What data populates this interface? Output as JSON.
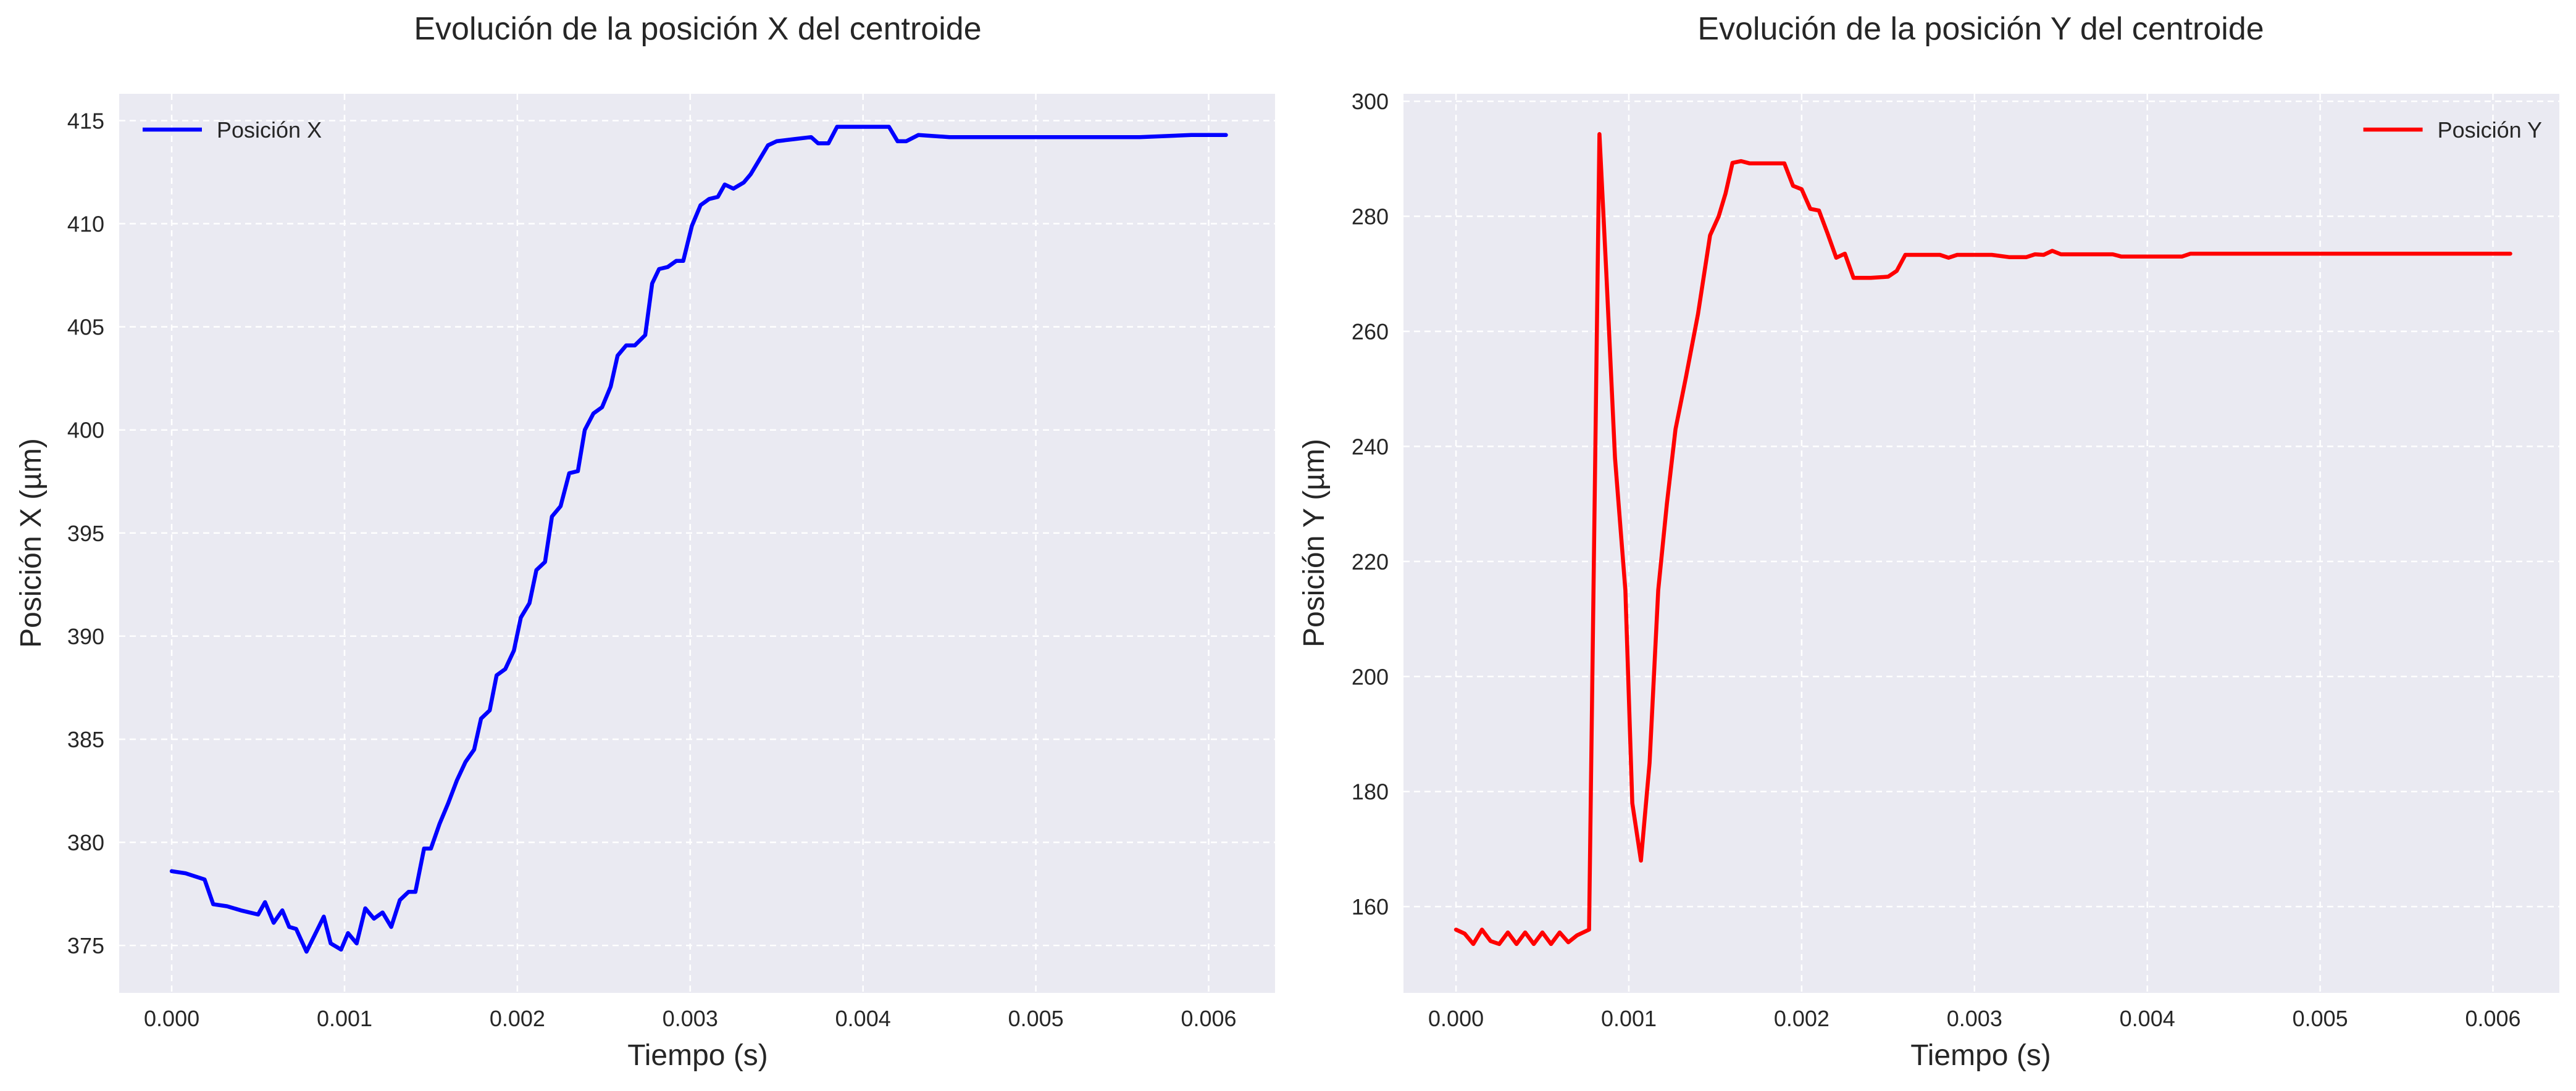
{
  "chart_data": [
    {
      "type": "line",
      "title": "Evolución de la posición X del centroide",
      "xlabel": "Tiempo (s)",
      "ylabel": "Posición X (µm)",
      "xlim": [
        -0.000304,
        0.006384
      ],
      "ylim": [
        372.7,
        416.3
      ],
      "xticks": [
        0.0,
        0.001,
        0.002,
        0.003,
        0.004,
        0.005,
        0.006
      ],
      "xtick_labels": [
        "0.000",
        "0.001",
        "0.002",
        "0.003",
        "0.004",
        "0.005",
        "0.006"
      ],
      "yticks": [
        375,
        380,
        385,
        390,
        395,
        400,
        405,
        410,
        415
      ],
      "ytick_labels": [
        "375",
        "380",
        "385",
        "390",
        "395",
        "400",
        "405",
        "410",
        "415"
      ],
      "grid": true,
      "legend_position": "top-left",
      "series": [
        {
          "name": "Posición X",
          "color": "#0000ff",
          "points": [
            [
              0.0,
              378.6
            ],
            [
              8e-05,
              378.5
            ],
            [
              0.00019,
              378.2
            ],
            [
              0.00024,
              377.0
            ],
            [
              0.00032,
              376.9
            ],
            [
              0.0004,
              376.7
            ],
            [
              0.0005,
              376.5
            ],
            [
              0.00054,
              377.1
            ],
            [
              0.00059,
              376.1
            ],
            [
              0.00064,
              376.7
            ],
            [
              0.00068,
              375.9
            ],
            [
              0.00072,
              375.8
            ],
            [
              0.00078,
              374.7
            ],
            [
              0.00088,
              376.4
            ],
            [
              0.00092,
              375.1
            ],
            [
              0.00098,
              374.8
            ],
            [
              0.00102,
              375.6
            ],
            [
              0.00107,
              375.1
            ],
            [
              0.00112,
              376.8
            ],
            [
              0.00117,
              376.3
            ],
            [
              0.00122,
              376.6
            ],
            [
              0.00127,
              375.9
            ],
            [
              0.00132,
              377.2
            ],
            [
              0.00137,
              377.6
            ],
            [
              0.00141,
              377.6
            ],
            [
              0.00146,
              379.7
            ],
            [
              0.0015,
              379.7
            ],
            [
              0.00155,
              380.9
            ],
            [
              0.0016,
              381.9
            ],
            [
              0.00165,
              383.0
            ],
            [
              0.0017,
              383.9
            ],
            [
              0.00175,
              384.5
            ],
            [
              0.00179,
              386.0
            ],
            [
              0.00184,
              386.4
            ],
            [
              0.00188,
              388.1
            ],
            [
              0.00193,
              388.4
            ],
            [
              0.00198,
              389.3
            ],
            [
              0.00202,
              390.9
            ],
            [
              0.00207,
              391.6
            ],
            [
              0.00211,
              393.2
            ],
            [
              0.00216,
              393.6
            ],
            [
              0.0022,
              395.8
            ],
            [
              0.00225,
              396.3
            ],
            [
              0.0023,
              397.9
            ],
            [
              0.00235,
              398.0
            ],
            [
              0.00239,
              400.0
            ],
            [
              0.00244,
              400.8
            ],
            [
              0.00249,
              401.1
            ],
            [
              0.00254,
              402.1
            ],
            [
              0.00258,
              403.6
            ],
            [
              0.00263,
              404.1
            ],
            [
              0.00268,
              404.1
            ],
            [
              0.00274,
              404.6
            ],
            [
              0.00278,
              407.1
            ],
            [
              0.00282,
              407.8
            ],
            [
              0.00287,
              407.9
            ],
            [
              0.00292,
              408.2
            ],
            [
              0.00296,
              408.2
            ],
            [
              0.00301,
              409.9
            ],
            [
              0.00306,
              410.9
            ],
            [
              0.00311,
              411.2
            ],
            [
              0.00316,
              411.3
            ],
            [
              0.0032,
              411.9
            ],
            [
              0.00325,
              411.7
            ],
            [
              0.00331,
              412.0
            ],
            [
              0.00335,
              412.4
            ],
            [
              0.0034,
              413.1
            ],
            [
              0.00345,
              413.8
            ],
            [
              0.0035,
              414.0
            ],
            [
              0.0036,
              414.1
            ],
            [
              0.0037,
              414.2
            ],
            [
              0.00374,
              413.9
            ],
            [
              0.0038,
              413.9
            ],
            [
              0.00385,
              414.7
            ],
            [
              0.0039,
              414.7
            ],
            [
              0.004,
              414.7
            ],
            [
              0.0041,
              414.7
            ],
            [
              0.00415,
              414.7
            ],
            [
              0.0042,
              414.0
            ],
            [
              0.00425,
              414.0
            ],
            [
              0.00432,
              414.3
            ],
            [
              0.0045,
              414.2
            ],
            [
              0.0048,
              414.2
            ],
            [
              0.0052,
              414.2
            ],
            [
              0.0056,
              414.2
            ],
            [
              0.0059,
              414.3
            ],
            [
              0.0061,
              414.3
            ]
          ]
        }
      ]
    },
    {
      "type": "line",
      "title": "Evolución de la posición Y del centroide",
      "xlabel": "Tiempo (s)",
      "ylabel": "Posición Y (µm)",
      "xlim": [
        -0.000304,
        0.006384
      ],
      "ylim": [
        145.0,
        301.3
      ],
      "xticks": [
        0.0,
        0.001,
        0.002,
        0.003,
        0.004,
        0.005,
        0.006
      ],
      "xtick_labels": [
        "0.000",
        "0.001",
        "0.002",
        "0.003",
        "0.004",
        "0.005",
        "0.006"
      ],
      "yticks": [
        160,
        180,
        200,
        220,
        240,
        260,
        280,
        300
      ],
      "ytick_labels": [
        "160",
        "180",
        "200",
        "220",
        "240",
        "260",
        "280",
        "300"
      ],
      "grid": true,
      "legend_position": "top-right",
      "series": [
        {
          "name": "Posición Y",
          "color": "#ff0000",
          "points": [
            [
              0.0,
              156.0
            ],
            [
              5e-05,
              155.3
            ],
            [
              0.0001,
              153.5
            ],
            [
              0.00015,
              156.0
            ],
            [
              0.0002,
              154.0
            ],
            [
              0.00025,
              153.5
            ],
            [
              0.0003,
              155.5
            ],
            [
              0.00035,
              153.5
            ],
            [
              0.0004,
              155.5
            ],
            [
              0.00045,
              153.5
            ],
            [
              0.0005,
              155.5
            ],
            [
              0.00055,
              153.5
            ],
            [
              0.0006,
              155.5
            ],
            [
              0.00065,
              153.8
            ],
            [
              0.0007,
              155.0
            ],
            [
              0.00077,
              156.0
            ],
            [
              0.00083,
              294.3
            ],
            [
              0.00087,
              270.0
            ],
            [
              0.00092,
              238.0
            ],
            [
              0.00098,
              215.0
            ],
            [
              0.00102,
              178.0
            ],
            [
              0.00107,
              168.0
            ],
            [
              0.00112,
              185.0
            ],
            [
              0.00117,
              215.0
            ],
            [
              0.00122,
              230.0
            ],
            [
              0.00127,
              243.0
            ],
            [
              0.00133,
              252.0
            ],
            [
              0.0014,
              263.0
            ],
            [
              0.00147,
              276.7
            ],
            [
              0.00152,
              280.0
            ],
            [
              0.00156,
              284.0
            ],
            [
              0.0016,
              289.3
            ],
            [
              0.00165,
              289.6
            ],
            [
              0.0017,
              289.2
            ],
            [
              0.0018,
              289.2
            ],
            [
              0.0019,
              289.2
            ],
            [
              0.00195,
              285.3
            ],
            [
              0.002,
              284.7
            ],
            [
              0.00205,
              281.3
            ],
            [
              0.0021,
              281.0
            ],
            [
              0.00215,
              277.0
            ],
            [
              0.0022,
              272.8
            ],
            [
              0.00225,
              273.5
            ],
            [
              0.0023,
              269.3
            ],
            [
              0.0024,
              269.3
            ],
            [
              0.0025,
              269.5
            ],
            [
              0.00255,
              270.5
            ],
            [
              0.0026,
              273.3
            ],
            [
              0.0027,
              273.3
            ],
            [
              0.0028,
              273.3
            ],
            [
              0.00285,
              272.8
            ],
            [
              0.0029,
              273.3
            ],
            [
              0.0031,
              273.3
            ],
            [
              0.0032,
              272.9
            ],
            [
              0.0033,
              272.9
            ],
            [
              0.00335,
              273.4
            ],
            [
              0.0034,
              273.3
            ],
            [
              0.00345,
              274.0
            ],
            [
              0.0035,
              273.4
            ],
            [
              0.0038,
              273.4
            ],
            [
              0.00385,
              273.0
            ],
            [
              0.0042,
              273.0
            ],
            [
              0.00425,
              273.5
            ],
            [
              0.0045,
              273.5
            ],
            [
              0.005,
              273.5
            ],
            [
              0.0055,
              273.5
            ],
            [
              0.0061,
              273.5
            ]
          ]
        }
      ]
    }
  ]
}
